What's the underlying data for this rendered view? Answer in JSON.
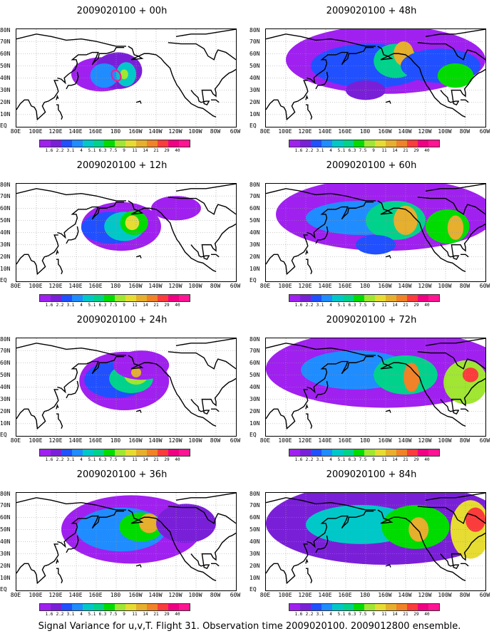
{
  "caption": "Signal Variance for u,v,T. Flight 31. Observation time 2009020100. 2009012800 ensemble.",
  "lat_labels": [
    "80N",
    "70N",
    "60N",
    "50N",
    "40N",
    "30N",
    "20N",
    "10N",
    "EQ"
  ],
  "lon_labels": [
    "80E",
    "100E",
    "120E",
    "140E",
    "160E",
    "180",
    "160W",
    "140W",
    "120W",
    "100W",
    "80W",
    "60W"
  ],
  "colorbar": {
    "labels": [
      "1.6",
      "2.2",
      "3.1",
      "4",
      "5.1",
      "6.3",
      "7.5",
      "9",
      "11",
      "14",
      "21",
      "29",
      "40"
    ],
    "colors": [
      "#a020f0",
      "#7a1fd8",
      "#2050ff",
      "#1f8cff",
      "#00c8c8",
      "#00d28c",
      "#00dc00",
      "#a0e632",
      "#e6dc32",
      "#e6af2d",
      "#f08228",
      "#fa3c3c",
      "#f00082",
      "#ff1493"
    ]
  },
  "panels": [
    {
      "title": "2009020100 + 00h",
      "lead_hours": 0
    },
    {
      "title": "2009020100 + 12h",
      "lead_hours": 12
    },
    {
      "title": "2009020100 + 24h",
      "lead_hours": 24
    },
    {
      "title": "2009020100 + 36h",
      "lead_hours": 36
    },
    {
      "title": "2009020100 + 48h",
      "lead_hours": 48
    },
    {
      "title": "2009020100 + 60h",
      "lead_hours": 60
    },
    {
      "title": "2009020100 + 72h",
      "lead_hours": 72
    },
    {
      "title": "2009020100 + 84h",
      "lead_hours": 84
    }
  ]
}
